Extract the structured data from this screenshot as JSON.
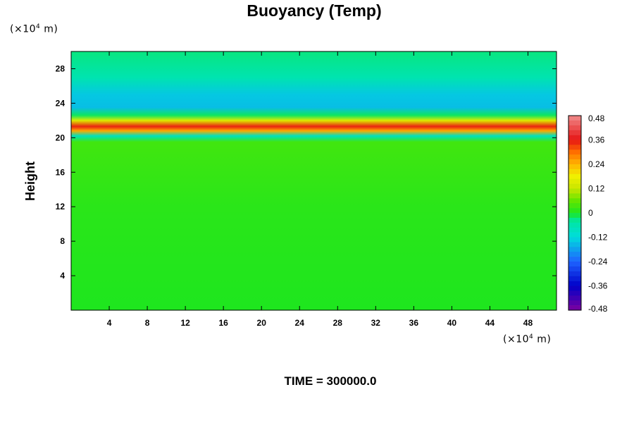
{
  "chart_data": {
    "type": "heatmap",
    "title": "Buoyancy (Temp)",
    "ylabel": "Height",
    "xlabel": "",
    "x_unit": "(×10",
    "x_unit_exp": "4",
    "x_unit_tail": " m)",
    "y_unit": "(×10",
    "y_unit_exp": "4",
    "y_unit_tail": " m)",
    "xlim": [
      0,
      51
    ],
    "ylim": [
      0,
      30
    ],
    "x_ticks": [
      "4",
      "8",
      "12",
      "16",
      "20",
      "24",
      "28",
      "32",
      "36",
      "40",
      "44",
      "48"
    ],
    "y_ticks": [
      "4",
      "8",
      "12",
      "16",
      "20",
      "24",
      "28"
    ],
    "colorbar": {
      "range": [
        -0.48,
        0.48
      ],
      "labels": [
        "0.48",
        "0.36",
        "0.24",
        "0.12",
        "0",
        "-0.12",
        "-0.24",
        "-0.36",
        "-0.48"
      ],
      "levels": [
        0.48,
        0.36,
        0.24,
        0.12,
        0,
        -0.12,
        -0.24,
        -0.36,
        -0.48
      ]
    },
    "field_profile": [
      {
        "height": 0,
        "value": 0.0
      },
      {
        "height": 12,
        "value": 0.01
      },
      {
        "height": 19.5,
        "value": 0.03
      },
      {
        "height": 20.2,
        "value": -0.08
      },
      {
        "height": 20.8,
        "value": 0.25
      },
      {
        "height": 21.3,
        "value": 0.35
      },
      {
        "height": 22.0,
        "value": 0.15
      },
      {
        "height": 22.6,
        "value": -0.02
      },
      {
        "height": 23.5,
        "value": -0.15
      },
      {
        "height": 25.0,
        "value": -0.14
      },
      {
        "height": 27.0,
        "value": -0.06
      },
      {
        "height": 30.0,
        "value": -0.03
      }
    ]
  },
  "footer": {
    "time_label": "TIME = 300000.0"
  }
}
